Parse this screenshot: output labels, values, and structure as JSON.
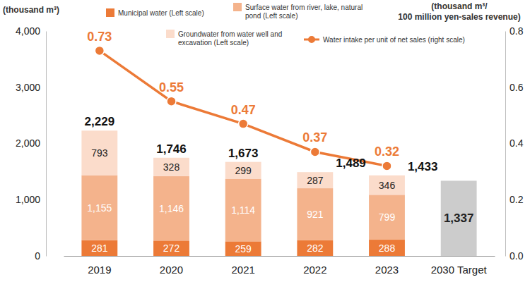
{
  "chart_data": {
    "type": "bar",
    "stacked": true,
    "data_labels": true,
    "grid": false,
    "ylabel": "(thousand m³)",
    "y2_label": [
      "(thousand m³/",
      "100 million yen-sales revenue)"
    ],
    "categories": [
      "2019",
      "2020",
      "2021",
      "2022",
      "2023",
      "2030 Target"
    ],
    "ylim": [
      0,
      4000
    ],
    "yticks": [
      0,
      {
        "value": 1000,
        "label": "1,000"
      },
      {
        "value": 2000,
        "label": "2,000"
      },
      {
        "value": 3000,
        "label": "3,000"
      },
      {
        "value": 4000,
        "label": "4,000"
      }
    ],
    "y2lim": [
      0,
      0.8
    ],
    "y2ticks": [
      {
        "value": 0,
        "label": "0.0"
      },
      0.2,
      0.4,
      0.6,
      0.8
    ],
    "series": [
      {
        "name": "Municipal water (Left scale)",
        "type": "bar",
        "color": "#ec7a37",
        "values": [
          281,
          272,
          259,
          282,
          288,
          null
        ],
        "value_labels": [
          "281",
          "272",
          "259",
          "282",
          "288",
          null
        ]
      },
      {
        "name": "Surface water from river, lake, natural pond (Left scale)",
        "type": "bar",
        "color": "#f4b38c",
        "values": [
          1155,
          1146,
          1114,
          921,
          799,
          null
        ],
        "value_labels": [
          "1,155",
          "1,146",
          "1,114",
          "921",
          "799",
          null
        ]
      },
      {
        "name": "Groundwater from water well and excavation (Left scale)",
        "type": "bar",
        "color": "#fbdccb",
        "values": [
          793,
          328,
          299,
          287,
          346,
          null
        ],
        "value_labels": [
          "793",
          "328",
          "299",
          "287",
          "346",
          null
        ]
      },
      {
        "type": "bar",
        "color": "#cccccc",
        "values": [
          null,
          null,
          null,
          null,
          null,
          1337
        ],
        "value_labels": [
          null,
          null,
          null,
          null,
          null,
          "1,337"
        ]
      },
      {
        "name": "Water intake per unit of net sales (right scale)",
        "type": "line",
        "axis": "y2",
        "color": "#ec7a37",
        "marker": "circle",
        "line_style": "solid",
        "values": [
          0.73,
          0.55,
          0.47,
          0.37,
          0.32,
          null
        ]
      }
    ],
    "totals": {
      "values": [
        2229,
        1746,
        1673,
        1489,
        1433,
        null
      ],
      "value_labels": [
        "2,229",
        "1,746",
        "1,673",
        "1,489",
        "1,433",
        null
      ]
    }
  }
}
